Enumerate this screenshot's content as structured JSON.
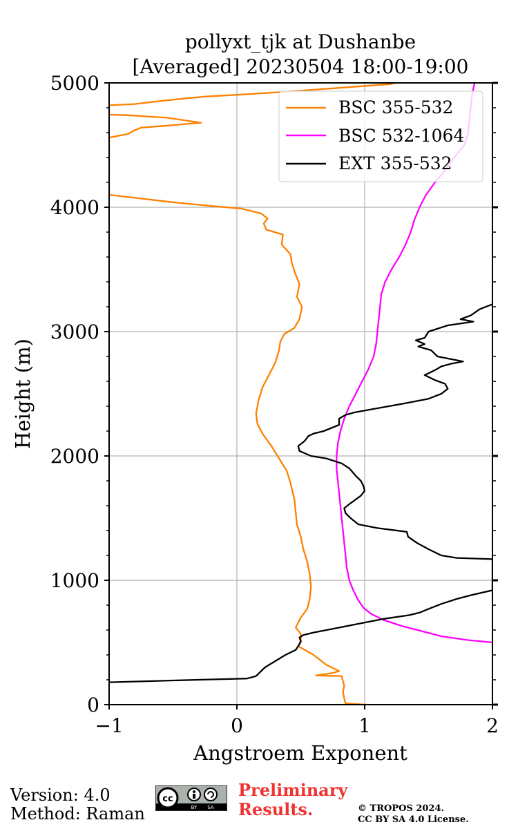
{
  "chart_data": {
    "type": "line",
    "title_line1": "pollyxt_tjk at Dushanbe",
    "title_line2": "[Averaged] 20230504 18:00-19:00",
    "xlabel": "Angstroem Exponent",
    "ylabel": "Height (m)",
    "xlim": [
      -1,
      2
    ],
    "ylim": [
      0,
      5000
    ],
    "xticks": [
      -1,
      0,
      1,
      2
    ],
    "xtick_labels": [
      "−1",
      "0",
      "1",
      "2"
    ],
    "yticks": [
      0,
      1000,
      2000,
      3000,
      4000,
      5000
    ],
    "ytick_labels": [
      "0",
      "1000",
      "2000",
      "3000",
      "4000",
      "5000"
    ],
    "grid": true,
    "legend_position": "top-right",
    "series": [
      {
        "name": "BSC 355-532",
        "color": "#ff8000",
        "points": [
          [
            1.02,
            0
          ],
          [
            0.85,
            10
          ],
          [
            0.84,
            50
          ],
          [
            0.83,
            100
          ],
          [
            0.84,
            150
          ],
          [
            0.82,
            230
          ],
          [
            0.62,
            235
          ],
          [
            0.75,
            255
          ],
          [
            0.8,
            270
          ],
          [
            0.7,
            320
          ],
          [
            0.6,
            400
          ],
          [
            0.48,
            470
          ],
          [
            0.5,
            500
          ],
          [
            0.5,
            570
          ],
          [
            0.46,
            620
          ],
          [
            0.5,
            700
          ],
          [
            0.55,
            770
          ],
          [
            0.57,
            850
          ],
          [
            0.58,
            950
          ],
          [
            0.57,
            1050
          ],
          [
            0.55,
            1150
          ],
          [
            0.52,
            1250
          ],
          [
            0.5,
            1350
          ],
          [
            0.47,
            1450
          ],
          [
            0.46,
            1550
          ],
          [
            0.45,
            1650
          ],
          [
            0.42,
            1780
          ],
          [
            0.39,
            1880
          ],
          [
            0.33,
            1980
          ],
          [
            0.27,
            2080
          ],
          [
            0.2,
            2180
          ],
          [
            0.16,
            2260
          ],
          [
            0.15,
            2340
          ],
          [
            0.17,
            2450
          ],
          [
            0.2,
            2550
          ],
          [
            0.25,
            2650
          ],
          [
            0.3,
            2750
          ],
          [
            0.33,
            2850
          ],
          [
            0.34,
            2920
          ],
          [
            0.37,
            2980
          ],
          [
            0.45,
            3030
          ],
          [
            0.49,
            3100
          ],
          [
            0.51,
            3200
          ],
          [
            0.47,
            3280
          ],
          [
            0.49,
            3380
          ],
          [
            0.46,
            3460
          ],
          [
            0.43,
            3550
          ],
          [
            0.42,
            3620
          ],
          [
            0.35,
            3700
          ],
          [
            0.36,
            3780
          ],
          [
            0.23,
            3820
          ],
          [
            0.21,
            3870
          ],
          [
            0.24,
            3910
          ],
          [
            0.19,
            3950
          ],
          [
            0.03,
            3990
          ],
          [
            -0.2,
            4010
          ],
          [
            -0.5,
            4040
          ],
          [
            -1.0,
            4100
          ],
          [
            -1.0,
            4560
          ],
          [
            -0.85,
            4590
          ],
          [
            -0.8,
            4620
          ],
          [
            -0.75,
            4640
          ],
          [
            -0.5,
            4660
          ],
          [
            -0.28,
            4680
          ],
          [
            -0.55,
            4720
          ],
          [
            -0.85,
            4740
          ],
          [
            -1.0,
            4745
          ],
          [
            -1.0,
            4820
          ],
          [
            -0.8,
            4830
          ],
          [
            -0.55,
            4860
          ],
          [
            -0.25,
            4890
          ],
          [
            0.1,
            4910
          ],
          [
            0.4,
            4930
          ],
          [
            0.8,
            4960
          ],
          [
            1.2,
            4990
          ],
          [
            1.24,
            5000
          ]
        ]
      },
      {
        "name": "BSC 532-1064",
        "color": "#ff00ff",
        "points": [
          [
            2.0,
            500
          ],
          [
            1.8,
            520
          ],
          [
            1.6,
            550
          ],
          [
            1.45,
            590
          ],
          [
            1.3,
            630
          ],
          [
            1.15,
            680
          ],
          [
            1.05,
            730
          ],
          [
            0.99,
            780
          ],
          [
            0.95,
            840
          ],
          [
            0.91,
            920
          ],
          [
            0.88,
            1000
          ],
          [
            0.86,
            1100
          ],
          [
            0.85,
            1200
          ],
          [
            0.84,
            1300
          ],
          [
            0.83,
            1400
          ],
          [
            0.82,
            1500
          ],
          [
            0.81,
            1600
          ],
          [
            0.8,
            1700
          ],
          [
            0.79,
            1800
          ],
          [
            0.78,
            1900
          ],
          [
            0.78,
            2000
          ],
          [
            0.79,
            2100
          ],
          [
            0.81,
            2200
          ],
          [
            0.84,
            2300
          ],
          [
            0.88,
            2400
          ],
          [
            0.93,
            2500
          ],
          [
            0.98,
            2600
          ],
          [
            1.03,
            2700
          ],
          [
            1.07,
            2800
          ],
          [
            1.09,
            2900
          ],
          [
            1.1,
            3000
          ],
          [
            1.11,
            3100
          ],
          [
            1.12,
            3200
          ],
          [
            1.13,
            3300
          ],
          [
            1.16,
            3400
          ],
          [
            1.21,
            3500
          ],
          [
            1.27,
            3600
          ],
          [
            1.32,
            3700
          ],
          [
            1.36,
            3800
          ],
          [
            1.39,
            3900
          ],
          [
            1.43,
            4000
          ],
          [
            1.48,
            4100
          ],
          [
            1.55,
            4200
          ],
          [
            1.63,
            4300
          ],
          [
            1.7,
            4400
          ],
          [
            1.78,
            4500
          ],
          [
            1.81,
            4600
          ],
          [
            1.82,
            4700
          ],
          [
            1.83,
            4800
          ],
          [
            1.84,
            4900
          ],
          [
            1.86,
            5000
          ]
        ]
      },
      {
        "name": "EXT 355-532",
        "color": "#000000",
        "points": [
          [
            -1.0,
            180
          ],
          [
            -0.3,
            200
          ],
          [
            0.08,
            210
          ],
          [
            0.15,
            230
          ],
          [
            0.18,
            260
          ],
          [
            0.22,
            300
          ],
          [
            0.3,
            350
          ],
          [
            0.38,
            400
          ],
          [
            0.46,
            440
          ],
          [
            0.48,
            470
          ],
          [
            0.5,
            510
          ],
          [
            0.49,
            540
          ],
          [
            0.52,
            560
          ],
          [
            0.6,
            580
          ],
          [
            0.75,
            610
          ],
          [
            0.95,
            650
          ],
          [
            1.15,
            690
          ],
          [
            1.35,
            720
          ],
          [
            1.43,
            740
          ],
          [
            1.5,
            770
          ],
          [
            1.6,
            810
          ],
          [
            1.72,
            850
          ],
          [
            1.83,
            880
          ],
          [
            2.0,
            920
          ],
          [
            2.0,
            1170
          ],
          [
            1.72,
            1180
          ],
          [
            1.6,
            1200
          ],
          [
            1.5,
            1250
          ],
          [
            1.41,
            1300
          ],
          [
            1.34,
            1350
          ],
          [
            1.33,
            1390
          ],
          [
            1.1,
            1420
          ],
          [
            0.95,
            1450
          ],
          [
            0.89,
            1500
          ],
          [
            0.85,
            1540
          ],
          [
            0.84,
            1580
          ],
          [
            0.89,
            1620
          ],
          [
            0.97,
            1680
          ],
          [
            1.0,
            1720
          ],
          [
            0.99,
            1760
          ],
          [
            0.97,
            1800
          ],
          [
            0.93,
            1840
          ],
          [
            0.88,
            1900
          ],
          [
            0.82,
            1940
          ],
          [
            0.7,
            1980
          ],
          [
            0.58,
            2000
          ],
          [
            0.49,
            2040
          ],
          [
            0.48,
            2080
          ],
          [
            0.53,
            2120
          ],
          [
            0.56,
            2160
          ],
          [
            0.6,
            2180
          ],
          [
            0.68,
            2200
          ],
          [
            0.8,
            2250
          ],
          [
            0.8,
            2300
          ],
          [
            0.85,
            2330
          ],
          [
            0.92,
            2350
          ],
          [
            1.08,
            2380
          ],
          [
            1.3,
            2420
          ],
          [
            1.5,
            2460
          ],
          [
            1.6,
            2500
          ],
          [
            1.65,
            2540
          ],
          [
            1.63,
            2580
          ],
          [
            1.55,
            2610
          ],
          [
            1.47,
            2650
          ],
          [
            1.55,
            2690
          ],
          [
            1.6,
            2720
          ],
          [
            1.67,
            2740
          ],
          [
            1.77,
            2760
          ],
          [
            1.57,
            2800
          ],
          [
            1.52,
            2850
          ],
          [
            1.42,
            2880
          ],
          [
            1.47,
            2900
          ],
          [
            1.4,
            2930
          ],
          [
            1.47,
            2950
          ],
          [
            1.5,
            3000
          ],
          [
            1.65,
            3050
          ],
          [
            1.85,
            3080
          ],
          [
            1.75,
            3100
          ],
          [
            1.83,
            3130
          ],
          [
            1.9,
            3180
          ],
          [
            2.0,
            3220
          ]
        ]
      }
    ]
  },
  "footer": {
    "version": "Version: 4.0",
    "method": "Method: Raman",
    "cc_main": "cc",
    "cc_by": "BY",
    "cc_sa": "SA",
    "prelim_line1": "Preliminary",
    "prelim_line2": "Results.",
    "copyright_line1": "© TROPOS 2024.",
    "copyright_line2": "CC BY SA 4.0 License."
  }
}
